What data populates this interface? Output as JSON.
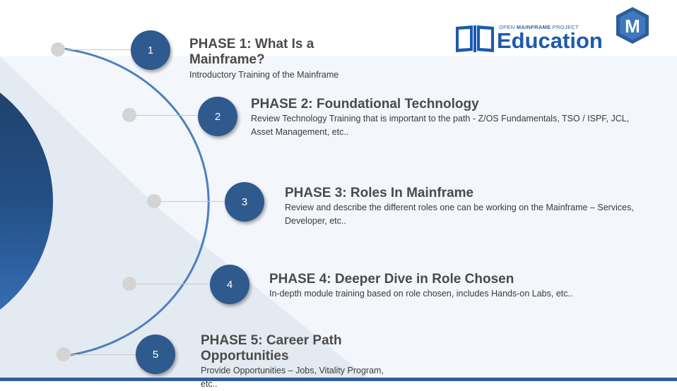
{
  "logo": {
    "open_text": "OPEN",
    "mainframe_text": "MAINFRAME",
    "project_text": "PROJECT",
    "education_text": "Education",
    "badge_letter": "M"
  },
  "phases": [
    {
      "number": "1",
      "title": "PHASE 1:  What Is a Mainframe?",
      "description": "Introductory Training of the Mainframe"
    },
    {
      "number": "2",
      "title": "PHASE 2:  Foundational Technology",
      "description": "Review Technology Training that is important to the path - Z/OS Fundamentals,  TSO / ISPF, JCL, Asset Management, etc.."
    },
    {
      "number": "3",
      "title": "PHASE 3:  Roles In Mainframe",
      "description": "Review and describe the different roles one can be working on the Mainframe – Services, Developer, etc.."
    },
    {
      "number": "4",
      "title": "PHASE 4:  Deeper Dive in Role Chosen",
      "description": "In-depth module training based on role chosen, includes Hands-on Labs, etc.."
    },
    {
      "number": "5",
      "title": "PHASE 5:  Career Path Opportunities",
      "description": "Provide Opportunities – Jobs,  Vitality Program, etc.."
    }
  ],
  "colors": {
    "accent": "#2e5a8e",
    "brand_blue": "#1c5aae",
    "arc": "#4d7fbf"
  }
}
